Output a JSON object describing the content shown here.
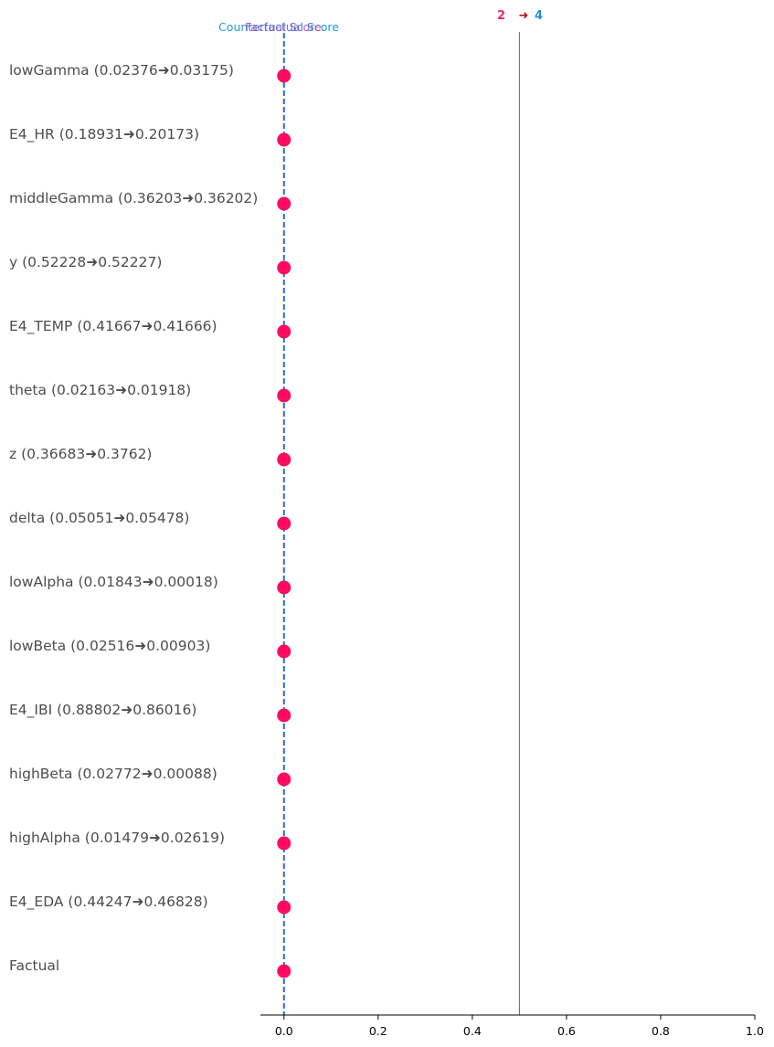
{
  "chart_data": {
    "type": "scatter",
    "title": "",
    "xlabel": "",
    "ylabel": "",
    "xlim": [
      -0.05,
      1.0
    ],
    "x_ticks": [
      0.0,
      0.2,
      0.4,
      0.6,
      0.8,
      1.0
    ],
    "x_tick_labels": [
      "0.0",
      "0.2",
      "0.4",
      "0.6",
      "0.8",
      "1.0"
    ],
    "grid": false,
    "categories": [
      "lowGamma (0.02376➜0.03175)",
      "E4_HR (0.18931➜0.20173)",
      "middleGamma (0.36203➜0.36202)",
      "y (0.52228➜0.52227)",
      "E4_TEMP (0.41667➜0.41666)",
      "theta (0.02163➜0.01918)",
      "z (0.36683➜0.3762)",
      "delta (0.05051➜0.05478)",
      "lowAlpha (0.01843➜0.00018)",
      "lowBeta (0.02516➜0.00903)",
      "E4_IBI (0.88802➜0.86016)",
      "highBeta (0.02772➜0.00088)",
      "highAlpha (0.01479➜0.02619)",
      "E4_EDA (0.44247➜0.46828)",
      "Factual"
    ],
    "values": [
      0,
      0,
      0,
      0,
      0,
      0,
      0,
      0,
      0,
      0,
      0,
      0,
      0,
      0,
      0
    ],
    "factual_score": 0.0,
    "counterfactual_score": 0.0,
    "threshold": 0.5,
    "factual_score_label": "Factual Score",
    "counterfactual_score_label": "Counterfactual Score",
    "class_from": "2",
    "class_arrow": "➜",
    "class_to": "4",
    "colors": {
      "marker": "#ff0a60",
      "score_line": "#1e6fcc",
      "threshold_line": "#c0394b",
      "factual_text": "#b33fb3",
      "counterfactual_text": "#1e9ad6",
      "class_from": "#e8286f",
      "class_arrow": "#b01020",
      "class_to": "#2a8fd6",
      "label_text": "#4d4d4d"
    }
  }
}
